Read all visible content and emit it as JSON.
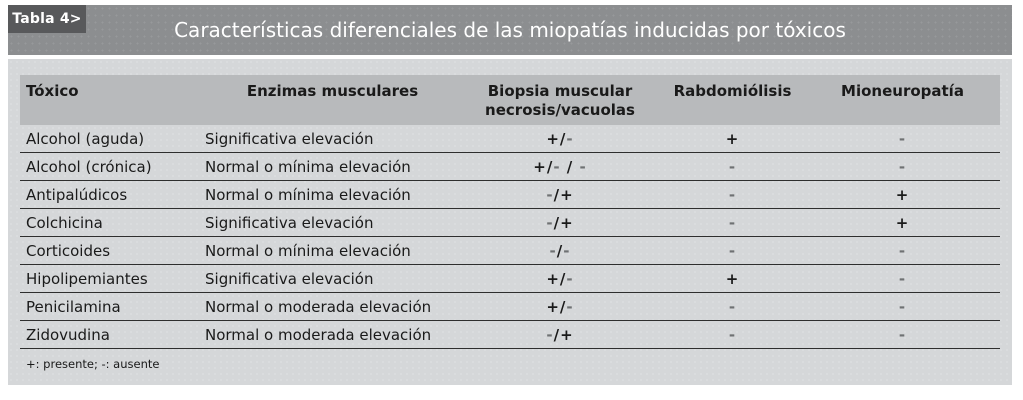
{
  "header": {
    "label": "Tabla 4>",
    "title": "Características diferenciales de las miopatías inducidas por tóxicos"
  },
  "columns": [
    {
      "label": "Tóxico"
    },
    {
      "label": "Enzimas musculares"
    },
    {
      "label": "Biopsia muscular necrosis/vacuolas",
      "line1": "Biopsia muscular",
      "line2": "necrosis/vacuolas"
    },
    {
      "label": "Rabdomiólisis"
    },
    {
      "label": "Mioneuropatía"
    }
  ],
  "rows": [
    {
      "toxico": "Alcohol (aguda)",
      "enzimas": "Significativa elevación",
      "biopsia": "+/-",
      "rabdomiolisis": "+",
      "mioneuropatia": "-"
    },
    {
      "toxico": "Alcohol (crónica)",
      "enzimas": "Normal o mínima elevación",
      "biopsia": "+/- / -",
      "rabdomiolisis": "-",
      "mioneuropatia": "-"
    },
    {
      "toxico": "Antipalúdicos",
      "enzimas": "Normal o mínima elevación",
      "biopsia": "-/+",
      "rabdomiolisis": "-",
      "mioneuropatia": "+"
    },
    {
      "toxico": "Colchicina",
      "enzimas": "Significativa elevación",
      "biopsia": "-/+",
      "rabdomiolisis": "-",
      "mioneuropatia": "+"
    },
    {
      "toxico": "Corticoides",
      "enzimas": "Normal o mínima elevación",
      "biopsia": "-/-",
      "rabdomiolisis": "-",
      "mioneuropatia": "-"
    },
    {
      "toxico": "Hipolipemiantes",
      "enzimas": "Significativa elevación",
      "biopsia": "+/-",
      "rabdomiolisis": "+",
      "mioneuropatia": "-"
    },
    {
      "toxico": "Penicilamina",
      "enzimas": "Normal o moderada elevación",
      "biopsia": "+/-",
      "rabdomiolisis": "-",
      "mioneuropatia": "-"
    },
    {
      "toxico": "Zidovudina",
      "enzimas": "Normal o moderada elevación",
      "biopsia": "-/+",
      "rabdomiolisis": "-",
      "mioneuropatia": "-"
    }
  ],
  "footnote": "+: presente; -: ausente",
  "colors": {
    "title_bar": "#8c8e90",
    "label_box": "#58595b",
    "panel_bg": "#d5d7d9",
    "header_band": "#b8babc",
    "text": "#1a1a1a",
    "minus_symbol": "#6f7173"
  }
}
